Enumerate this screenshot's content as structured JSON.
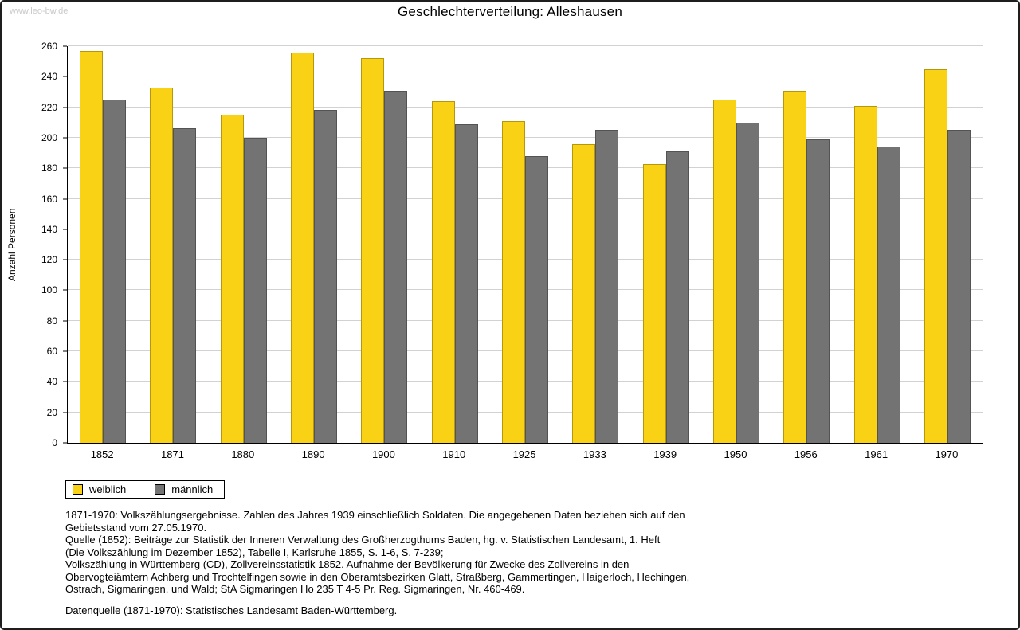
{
  "watermark": "www.leo-bw.de",
  "chart_data": {
    "type": "bar",
    "title": "Geschlechterverteilung: Alleshausen",
    "ylabel": "Anzahl Personen",
    "xlabel": "",
    "ylim": [
      0,
      260
    ],
    "ytick_step": 20,
    "grid": true,
    "legend_position": "bottom-left",
    "categories": [
      "1852",
      "1871",
      "1880",
      "1890",
      "1900",
      "1910",
      "1925",
      "1933",
      "1939",
      "1950",
      "1956",
      "1961",
      "1970"
    ],
    "series": [
      {
        "name": "weiblich",
        "color": "#F9D216",
        "values": [
          257,
          233,
          215,
          256,
          252,
          224,
          211,
          196,
          183,
          225,
          231,
          221,
          245
        ]
      },
      {
        "name": "männlich",
        "color": "#737373",
        "values": [
          225,
          206,
          200,
          218,
          231,
          209,
          188,
          205,
          191,
          210,
          199,
          194,
          205
        ]
      }
    ]
  },
  "footnotes": [
    "1871-1970: Volkszählungsergebnisse. Zahlen des Jahres 1939 einschließlich Soldaten. Die angegebenen Daten beziehen sich auf den",
    "Gebietsstand vom 27.05.1970.",
    "Quelle (1852): Beiträge zur Statistik der Inneren Verwaltung des Großherzogthums Baden, hg. v. Statistischen Landesamt, 1. Heft",
    "(Die Volkszählung im Dezember 1852), Tabelle I, Karlsruhe 1855, S. 1-6, S. 7-239;",
    "Volkszählung in Württemberg (CD), Zollvereinsstatistik 1852. Aufnahme der Bevölkerung für Zwecke des Zollvereins in den",
    "Obervogteiämtern Achberg und Trochtelfingen sowie in den Oberamtsbezirken Glatt, Straßberg, Gammertingen, Haigerloch, Hechingen,",
    "Ostrach, Sigmaringen, und Wald; StA Sigmaringen Ho 235 T 4-5 Pr. Reg. Sigmaringen, Nr. 460-469.",
    "",
    "Datenquelle (1871-1970): Statistisches Landesamt Baden-Württemberg."
  ]
}
